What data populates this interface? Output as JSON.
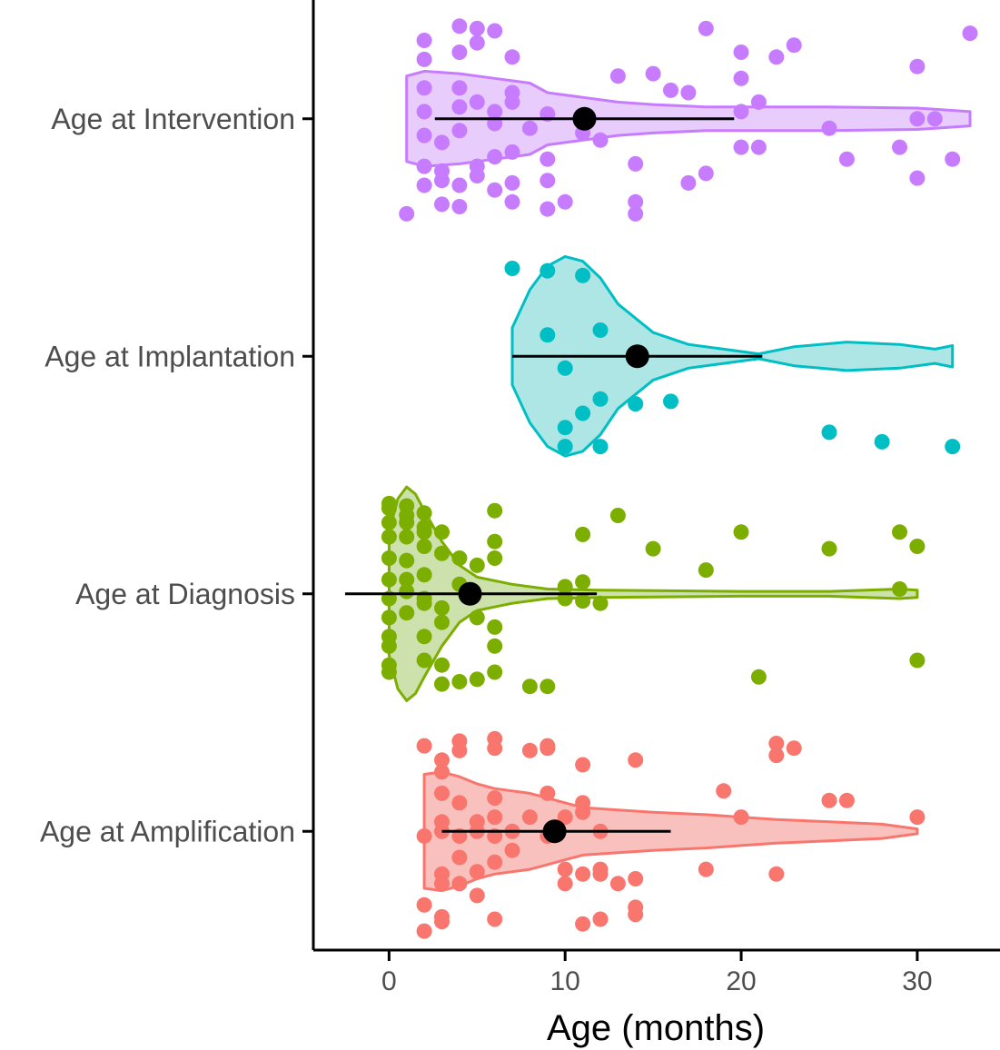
{
  "chart_data": {
    "type": "violin",
    "xlabel": "Age (months)",
    "ylabel": "",
    "xlim": [
      -4.3,
      34.7
    ],
    "x_ticks": [
      0,
      10,
      20,
      30
    ],
    "grid": false,
    "legend": "none",
    "categories": [
      "Age at Amplification",
      "Age at Diagnosis",
      "Age at Implantation",
      "Age at Intervention"
    ],
    "series": [
      {
        "name": "Age at Amplification",
        "color": "#F8766D",
        "fill": "#F8B6B1",
        "mean": 9.4,
        "sd_range": [
          3,
          16
        ],
        "violin": [
          [
            2,
            0.24
          ],
          [
            3,
            0.25
          ],
          [
            4,
            0.23
          ],
          [
            5,
            0.2
          ],
          [
            6,
            0.18
          ],
          [
            8,
            0.16
          ],
          [
            9,
            0.14
          ],
          [
            10,
            0.12
          ],
          [
            11,
            0.1
          ],
          [
            13,
            0.09
          ],
          [
            15,
            0.08
          ],
          [
            18,
            0.07
          ],
          [
            20,
            0.06
          ],
          [
            22,
            0.05
          ],
          [
            25,
            0.04
          ],
          [
            28,
            0.03
          ],
          [
            30,
            0.01
          ]
        ],
        "points": [
          [
            2,
            0.42
          ],
          [
            3,
            0.38
          ],
          [
            3,
            0.36
          ],
          [
            6,
            0.37
          ],
          [
            11,
            0.39
          ],
          [
            12,
            0.37
          ],
          [
            14,
            0.35
          ],
          [
            14,
            0.32
          ],
          [
            2,
            0.31
          ],
          [
            5,
            0.27
          ],
          [
            3,
            0.22
          ],
          [
            4,
            0.22
          ],
          [
            10,
            0.22
          ],
          [
            13,
            0.22
          ],
          [
            14,
            0.2
          ],
          [
            11,
            0.18
          ],
          [
            12,
            0.18
          ],
          [
            12,
            0.16
          ],
          [
            10,
            0.16
          ],
          [
            18,
            0.16
          ],
          [
            22,
            0.18
          ],
          [
            3,
            0.18
          ],
          [
            5,
            0.17
          ],
          [
            6,
            0.13
          ],
          [
            4,
            0.11
          ],
          [
            7,
            0.08
          ],
          [
            2,
            0.02
          ],
          [
            3,
            0.0
          ],
          [
            4,
            0.02
          ],
          [
            5,
            0.0
          ],
          [
            6,
            0.02
          ],
          [
            7,
            0.0
          ],
          [
            9,
            0.02
          ],
          [
            12,
            0.0
          ],
          [
            3,
            -0.04
          ],
          [
            5,
            -0.04
          ],
          [
            6,
            -0.06
          ],
          [
            8,
            -0.06
          ],
          [
            10,
            -0.06
          ],
          [
            11,
            -0.08
          ],
          [
            20,
            -0.06
          ],
          [
            4,
            -0.12
          ],
          [
            6,
            -0.14
          ],
          [
            3,
            -0.16
          ],
          [
            9,
            -0.16
          ],
          [
            11,
            -0.12
          ],
          [
            19,
            -0.17
          ],
          [
            25,
            -0.13
          ],
          [
            26,
            -0.13
          ],
          [
            30,
            -0.06
          ],
          [
            3,
            -0.25
          ],
          [
            3,
            -0.3
          ],
          [
            11,
            -0.28
          ],
          [
            14,
            -0.3
          ],
          [
            22,
            -0.32
          ],
          [
            2,
            -0.36
          ],
          [
            4,
            -0.34
          ],
          [
            4,
            -0.38
          ],
          [
            6,
            -0.35
          ],
          [
            6,
            -0.39
          ],
          [
            8,
            -0.34
          ],
          [
            9,
            -0.35
          ],
          [
            9,
            -0.36
          ],
          [
            22,
            -0.37
          ],
          [
            23,
            -0.35
          ]
        ]
      },
      {
        "name": "Age at Diagnosis",
        "color": "#7CAE00",
        "fill": "#C4DC9E",
        "mean": 4.6,
        "sd_range": [
          -2.5,
          11.8
        ],
        "violin": [
          [
            0,
            0.26
          ],
          [
            0.5,
            0.4
          ],
          [
            1,
            0.45
          ],
          [
            1.5,
            0.42
          ],
          [
            2,
            0.35
          ],
          [
            3,
            0.22
          ],
          [
            4,
            0.12
          ],
          [
            5,
            0.07
          ],
          [
            7,
            0.04
          ],
          [
            9,
            0.02
          ],
          [
            12,
            0.015
          ],
          [
            20,
            0.01
          ],
          [
            25,
            0.01
          ],
          [
            29,
            0.02
          ],
          [
            30,
            0.015
          ]
        ],
        "points": [
          [
            3,
            0.38
          ],
          [
            4,
            0.37
          ],
          [
            5,
            0.36
          ],
          [
            6,
            0.33
          ],
          [
            8,
            0.39
          ],
          [
            9,
            0.39
          ],
          [
            21,
            0.35
          ],
          [
            30,
            0.28
          ],
          [
            0,
            0.33
          ],
          [
            0,
            0.3
          ],
          [
            2,
            0.28
          ],
          [
            3,
            0.3
          ],
          [
            6,
            0.22
          ],
          [
            6,
            0.14
          ],
          [
            0,
            0.22
          ],
          [
            0,
            0.18
          ],
          [
            2,
            0.18
          ],
          [
            3,
            0.12
          ],
          [
            5,
            0.1
          ],
          [
            0,
            0.1
          ],
          [
            1,
            0.08
          ],
          [
            2,
            0.04
          ],
          [
            3,
            0.06
          ],
          [
            0,
            0.02
          ],
          [
            1,
            -0.01
          ],
          [
            2,
            0.02
          ],
          [
            10,
            0.02
          ],
          [
            11,
            0.03
          ],
          [
            12,
            0.04
          ],
          [
            10,
            -0.03
          ],
          [
            11,
            -0.05
          ],
          [
            29,
            -0.02
          ],
          [
            0,
            -0.06
          ],
          [
            1,
            -0.06
          ],
          [
            2,
            -0.08
          ],
          [
            4,
            -0.04
          ],
          [
            5,
            -0.12
          ],
          [
            6,
            -0.15
          ],
          [
            0,
            -0.15
          ],
          [
            1,
            -0.14
          ],
          [
            2,
            -0.2
          ],
          [
            3,
            -0.17
          ],
          [
            4,
            -0.15
          ],
          [
            15,
            -0.19
          ],
          [
            18,
            -0.1
          ],
          [
            25,
            -0.19
          ],
          [
            30,
            -0.2
          ],
          [
            0,
            -0.24
          ],
          [
            1,
            -0.24
          ],
          [
            2,
            -0.26
          ],
          [
            3,
            -0.26
          ],
          [
            6,
            -0.22
          ],
          [
            0,
            -0.3
          ],
          [
            1,
            -0.3
          ],
          [
            2,
            -0.28
          ],
          [
            6,
            -0.35
          ],
          [
            11,
            -0.25
          ],
          [
            13,
            -0.33
          ],
          [
            20,
            -0.26
          ],
          [
            29,
            -0.26
          ],
          [
            0,
            -0.36
          ],
          [
            1,
            -0.37
          ],
          [
            2,
            -0.34
          ],
          [
            1,
            -0.33
          ],
          [
            0,
            -0.38
          ]
        ]
      },
      {
        "name": "Age at Implantation",
        "color": "#00BFC4",
        "fill": "#A0E0E1",
        "mean": 14.1,
        "sd_range": [
          7,
          21.2
        ],
        "violin": [
          [
            7,
            0.12
          ],
          [
            8,
            0.28
          ],
          [
            9,
            0.38
          ],
          [
            10,
            0.42
          ],
          [
            11,
            0.4
          ],
          [
            12,
            0.33
          ],
          [
            13,
            0.22
          ],
          [
            15,
            0.1
          ],
          [
            17,
            0.05
          ],
          [
            19,
            0.03
          ],
          [
            21,
            0.01
          ],
          [
            23,
            0.04
          ],
          [
            26,
            0.06
          ],
          [
            29,
            0.05
          ],
          [
            31,
            0.03
          ],
          [
            32,
            0.045
          ]
        ],
        "points": [
          [
            10,
            0.38
          ],
          [
            12,
            0.38
          ],
          [
            10,
            0.3
          ],
          [
            11,
            0.24
          ],
          [
            12,
            0.18
          ],
          [
            14,
            0.2
          ],
          [
            16,
            0.19
          ],
          [
            25,
            0.32
          ],
          [
            28,
            0.36
          ],
          [
            32,
            0.38
          ],
          [
            10,
            0.05
          ],
          [
            9,
            -0.09
          ],
          [
            12,
            -0.11
          ],
          [
            11,
            -0.34
          ],
          [
            7,
            -0.37
          ],
          [
            9,
            -0.36
          ]
        ]
      },
      {
        "name": "Age at Intervention",
        "color": "#C77CFF",
        "fill": "#E3C3FB",
        "mean": 11.1,
        "sd_range": [
          2.6,
          19.6
        ],
        "violin": [
          [
            1,
            0.18
          ],
          [
            2,
            0.2
          ],
          [
            4,
            0.19
          ],
          [
            6,
            0.17
          ],
          [
            7,
            0.16
          ],
          [
            8,
            0.15
          ],
          [
            9,
            0.11
          ],
          [
            10,
            0.1
          ],
          [
            11,
            0.09
          ],
          [
            13,
            0.07
          ],
          [
            15,
            0.06
          ],
          [
            18,
            0.05
          ],
          [
            20,
            0.05
          ],
          [
            25,
            0.05
          ],
          [
            30,
            0.045
          ],
          [
            33,
            0.03
          ]
        ],
        "points": [
          [
            1,
            0.4
          ],
          [
            3,
            0.36
          ],
          [
            4,
            0.37
          ],
          [
            6,
            0.3
          ],
          [
            7,
            0.35
          ],
          [
            9,
            0.38
          ],
          [
            10,
            0.35
          ],
          [
            14,
            0.4
          ],
          [
            14,
            0.35
          ],
          [
            2,
            0.28
          ],
          [
            3,
            0.26
          ],
          [
            4,
            0.28
          ],
          [
            5,
            0.24
          ],
          [
            7,
            0.27
          ],
          [
            9,
            0.26
          ],
          [
            17,
            0.27
          ],
          [
            18,
            0.23
          ],
          [
            30,
            0.25
          ],
          [
            2,
            0.2
          ],
          [
            3,
            0.22
          ],
          [
            5,
            0.2
          ],
          [
            6,
            0.16
          ],
          [
            7,
            0.14
          ],
          [
            9,
            0.17
          ],
          [
            14,
            0.19
          ],
          [
            20,
            0.12
          ],
          [
            21,
            0.12
          ],
          [
            26,
            0.17
          ],
          [
            29,
            0.12
          ],
          [
            32,
            0.17
          ],
          [
            2,
            0.07
          ],
          [
            3,
            0.1
          ],
          [
            4,
            0.05
          ],
          [
            6,
            0.02
          ],
          [
            8,
            0.04
          ],
          [
            11,
            0.06
          ],
          [
            12,
            0.09
          ],
          [
            25,
            0.04
          ],
          [
            30,
            0.0
          ],
          [
            31,
            0.0
          ],
          [
            2,
            -0.03
          ],
          [
            4,
            -0.05
          ],
          [
            5,
            -0.07
          ],
          [
            6,
            -0.03
          ],
          [
            7,
            -0.07
          ],
          [
            9,
            -0.02
          ],
          [
            20,
            -0.03
          ],
          [
            21,
            -0.07
          ],
          [
            2,
            -0.13
          ],
          [
            4,
            -0.13
          ],
          [
            7,
            -0.11
          ],
          [
            13,
            -0.18
          ],
          [
            15,
            -0.19
          ],
          [
            16,
            -0.12
          ],
          [
            17,
            -0.11
          ],
          [
            20,
            -0.17
          ],
          [
            2,
            -0.25
          ],
          [
            4,
            -0.28
          ],
          [
            7,
            -0.26
          ],
          [
            20,
            -0.28
          ],
          [
            22,
            -0.26
          ],
          [
            23,
            -0.31
          ],
          [
            30,
            -0.22
          ],
          [
            2,
            -0.33
          ],
          [
            5,
            -0.32
          ],
          [
            6,
            -0.37
          ],
          [
            4,
            -0.39
          ],
          [
            5,
            -0.38
          ],
          [
            18,
            -0.38
          ],
          [
            33,
            -0.36
          ]
        ]
      }
    ]
  }
}
